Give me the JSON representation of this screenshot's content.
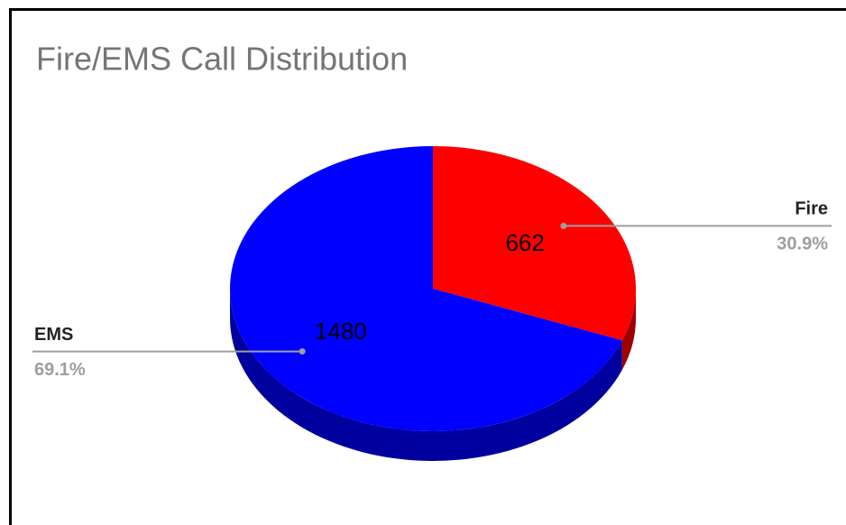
{
  "chart_data": {
    "type": "pie3d",
    "title": "Fire/EMS Call Distribution",
    "categories": [
      "Fire",
      "EMS"
    ],
    "values": [
      662,
      1480
    ],
    "percent_labels": [
      "30.9%",
      "69.1%"
    ],
    "colors": [
      "#ff0000",
      "#0000ff"
    ]
  }
}
